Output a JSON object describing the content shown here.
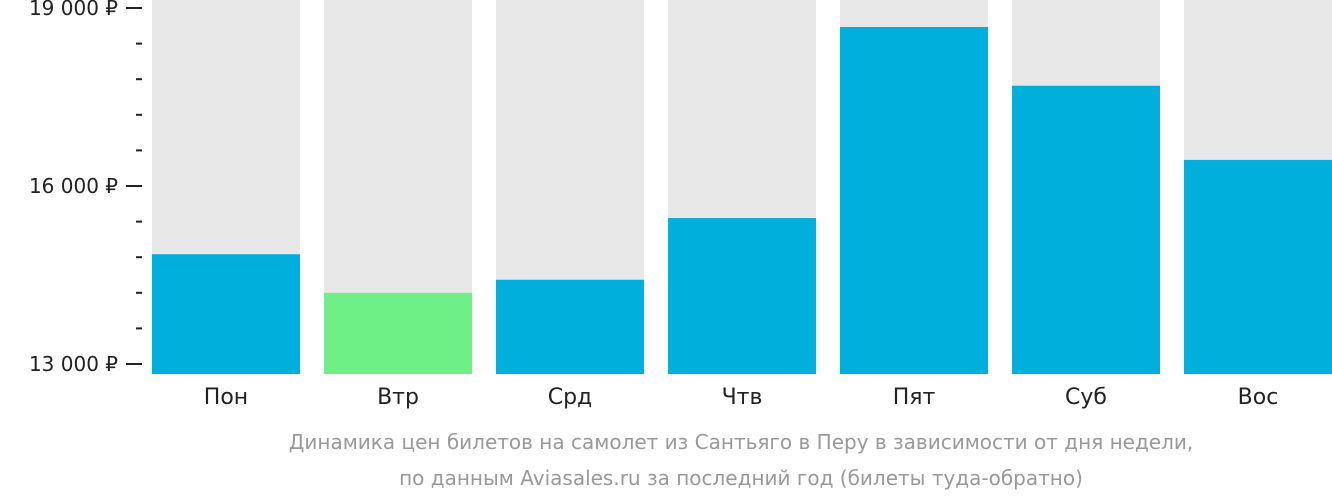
{
  "chart_data": {
    "type": "bar",
    "categories": [
      "Пон",
      "Втр",
      "Срд",
      "Чтв",
      "Пят",
      "Суб",
      "Вос"
    ],
    "values": [
      14850,
      14200,
      14420,
      15460,
      18680,
      17690,
      16440
    ],
    "ylim": [
      13000,
      19000
    ],
    "yticks": [
      {
        "value": 19000,
        "label": "19 000 ₽"
      },
      {
        "value": 16000,
        "label": "16 000 ₽"
      },
      {
        "value": 13000,
        "label": "13 000 ₽"
      }
    ],
    "minor_step": 600,
    "grid": false,
    "colors": {
      "bar": "#00afdc",
      "highlight": "#6ef086",
      "background_column": "#e8e8e8",
      "axis": "#222222"
    },
    "highlight_index": 1
  },
  "caption": {
    "line1": "Динамика цен билетов на самолет из Сантьяго в Перу в зависимости от дня недели,",
    "line2": "по данным Aviasales.ru за последний год (билеты туда-обратно)"
  }
}
